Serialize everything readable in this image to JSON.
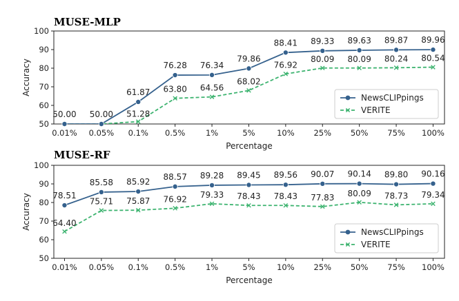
{
  "chart_data": [
    {
      "type": "line",
      "title": "MUSE-MLP",
      "xlabel": "Percentage",
      "ylabel": "Accuracy",
      "ylim": [
        50,
        100
      ],
      "yticks": [
        50,
        60,
        70,
        80,
        90,
        100
      ],
      "categories": [
        "0.01%",
        "0.05%",
        "0.1%",
        "0.5%",
        "1%",
        "5%",
        "10%",
        "25%",
        "50%",
        "75%",
        "100%"
      ],
      "series": [
        {
          "name": "NewsCLIPpings",
          "color": "#35618d",
          "marker": "circle",
          "dash": "solid",
          "values": [
            50.0,
            50.0,
            61.87,
            76.28,
            76.34,
            79.86,
            88.41,
            89.33,
            89.63,
            89.87,
            89.96
          ],
          "labels": [
            "50.00",
            "50.00",
            "61.87",
            "76.28",
            "76.34",
            "79.86",
            "88.41",
            "89.33",
            "89.63",
            "89.87",
            "89.96"
          ]
        },
        {
          "name": "VERITE",
          "color": "#3cb36f",
          "marker": "x",
          "dash": "dashed",
          "values": [
            50.0,
            50.0,
            51.28,
            63.8,
            64.56,
            68.02,
            76.92,
            80.09,
            80.09,
            80.24,
            80.54
          ],
          "labels": [
            "",
            "",
            "51.28",
            "63.80",
            "64.56",
            "68.02",
            "76.92",
            "80.09",
            "80.09",
            "80.24",
            "80.54"
          ]
        }
      ],
      "legend": "bottom-right"
    },
    {
      "type": "line",
      "title": "MUSE-RF",
      "xlabel": "Percentage",
      "ylabel": "Accuracy",
      "ylim": [
        50,
        100
      ],
      "yticks": [
        50,
        60,
        70,
        80,
        90,
        100
      ],
      "categories": [
        "0.01%",
        "0.05%",
        "0.1%",
        "0.5%",
        "1%",
        "5%",
        "10%",
        "25%",
        "50%",
        "75%",
        "100%"
      ],
      "series": [
        {
          "name": "NewsCLIPpings",
          "color": "#35618d",
          "marker": "circle",
          "dash": "solid",
          "values": [
            78.51,
            85.58,
            85.92,
            88.57,
            89.28,
            89.45,
            89.56,
            90.07,
            90.14,
            89.8,
            90.16
          ],
          "labels": [
            "78.51",
            "85.58",
            "85.92",
            "88.57",
            "89.28",
            "89.45",
            "89.56",
            "90.07",
            "90.14",
            "89.80",
            "90.16"
          ]
        },
        {
          "name": "VERITE",
          "color": "#3cb36f",
          "marker": "x",
          "dash": "dashed",
          "values": [
            64.4,
            75.71,
            75.87,
            76.92,
            79.33,
            78.43,
            78.43,
            77.83,
            80.09,
            78.73,
            79.34
          ],
          "labels": [
            "64.40",
            "75.71",
            "75.87",
            "76.92",
            "79.33",
            "78.43",
            "78.43",
            "77.83",
            "80.09",
            "78.73",
            "79.34"
          ]
        }
      ],
      "legend": "bottom-right"
    }
  ]
}
